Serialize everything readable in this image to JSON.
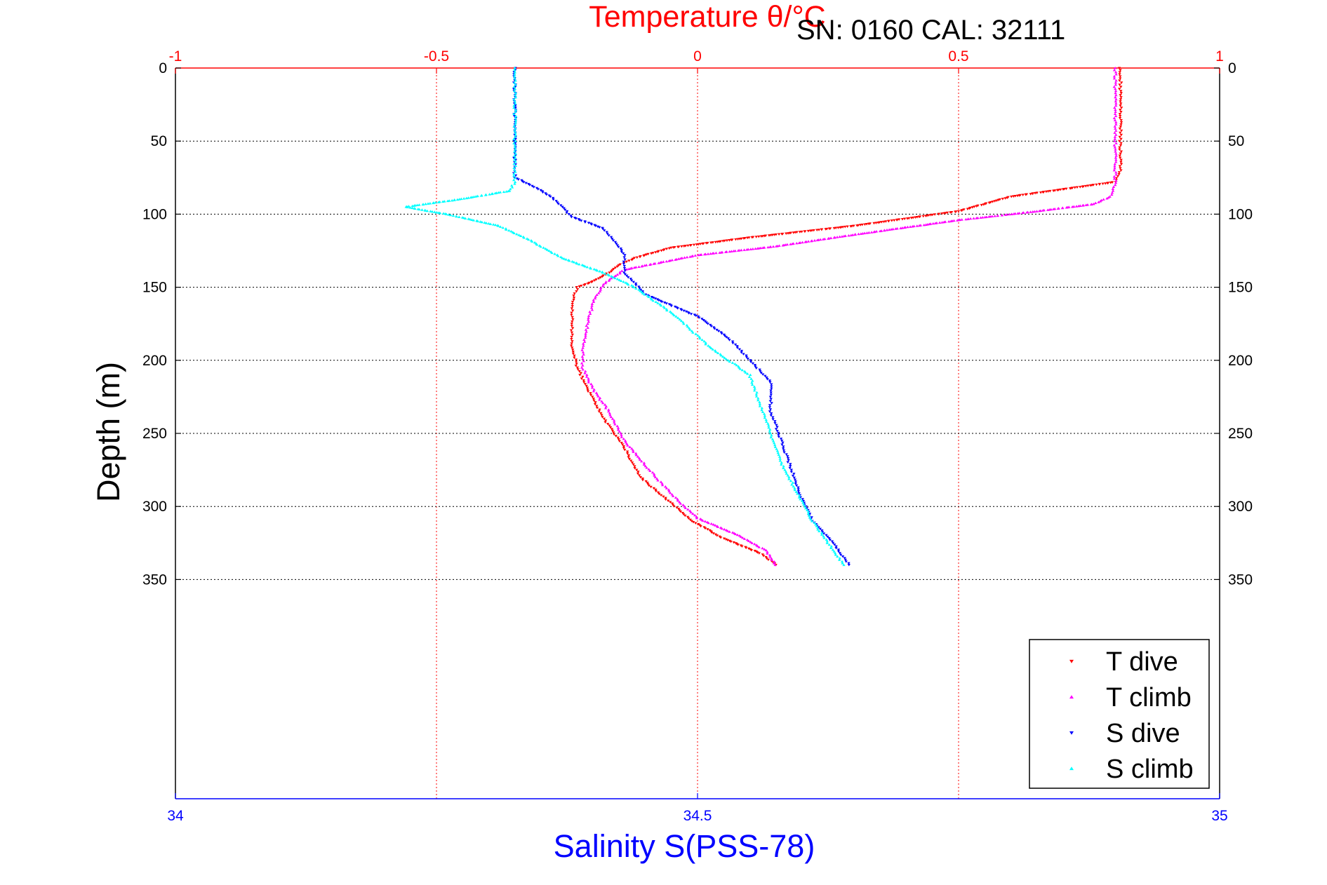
{
  "chart_data": {
    "type": "scatter",
    "sn_label": "SN: 0160  CAL: 32111",
    "top_axis": {
      "label": "Temperature θ/°C",
      "range": [
        -1,
        1
      ],
      "ticks": [
        -1,
        -0.5,
        0,
        0.5,
        1
      ],
      "tick_labels": [
        "-1",
        "-0.5",
        "0",
        "0.5",
        "1"
      ],
      "color": "#ff0000"
    },
    "bottom_axis": {
      "label": "Salinity S(PSS-78)",
      "range": [
        34,
        35
      ],
      "ticks": [
        34,
        34.5,
        35
      ],
      "tick_labels": [
        "34",
        "34.5",
        "35"
      ],
      "color": "#0000ff"
    },
    "y_axis": {
      "label": "Depth (m)",
      "range": [
        0,
        500
      ],
      "inverted": true,
      "ticks": [
        0,
        50,
        100,
        150,
        200,
        250,
        300,
        350
      ],
      "tick_labels": [
        "0",
        "50",
        "100",
        "150",
        "200",
        "250",
        "300",
        "350"
      ]
    },
    "grid": true,
    "legend_position": "bottom-right",
    "series": [
      {
        "name": "T dive",
        "axis": "temperature",
        "color": "#ff0000",
        "marker": "triangle-down",
        "points": [
          [
            0.81,
            0
          ],
          [
            0.81,
            20
          ],
          [
            0.81,
            40
          ],
          [
            0.81,
            60
          ],
          [
            0.81,
            70
          ],
          [
            0.8,
            78
          ],
          [
            0.72,
            82
          ],
          [
            0.6,
            88
          ],
          [
            0.5,
            98
          ],
          [
            0.3,
            108
          ],
          [
            0.1,
            116
          ],
          [
            -0.05,
            123
          ],
          [
            -0.12,
            130
          ],
          [
            -0.15,
            135
          ],
          [
            -0.17,
            140
          ],
          [
            -0.2,
            146
          ],
          [
            -0.23,
            150
          ],
          [
            -0.24,
            160
          ],
          [
            -0.24,
            175
          ],
          [
            -0.24,
            190
          ],
          [
            -0.23,
            205
          ],
          [
            -0.21,
            220
          ],
          [
            -0.18,
            240
          ],
          [
            -0.14,
            260
          ],
          [
            -0.11,
            280
          ],
          [
            -0.05,
            298
          ],
          [
            -0.01,
            310
          ],
          [
            0.05,
            322
          ],
          [
            0.12,
            332
          ],
          [
            0.15,
            340
          ]
        ]
      },
      {
        "name": "T climb",
        "axis": "temperature",
        "color": "#ff00ff",
        "marker": "triangle-up",
        "points": [
          [
            0.15,
            340
          ],
          [
            0.13,
            330
          ],
          [
            0.08,
            320
          ],
          [
            0,
            308
          ],
          [
            -0.04,
            295
          ],
          [
            -0.08,
            280
          ],
          [
            -0.14,
            255
          ],
          [
            -0.17,
            235
          ],
          [
            -0.2,
            220
          ],
          [
            -0.22,
            205
          ],
          [
            -0.22,
            190
          ],
          [
            -0.21,
            175
          ],
          [
            -0.2,
            160
          ],
          [
            -0.18,
            148
          ],
          [
            -0.14,
            138
          ],
          [
            0,
            128
          ],
          [
            0.15,
            122
          ],
          [
            0.3,
            114
          ],
          [
            0.5,
            104
          ],
          [
            0.65,
            98
          ],
          [
            0.76,
            93
          ],
          [
            0.79,
            88
          ],
          [
            0.8,
            80
          ],
          [
            0.8,
            60
          ],
          [
            0.8,
            40
          ],
          [
            0.8,
            20
          ],
          [
            0.8,
            0
          ]
        ]
      },
      {
        "name": "S dive",
        "axis": "salinity",
        "color": "#0000ff",
        "marker": "triangle-down",
        "points": [
          [
            34.325,
            0
          ],
          [
            34.325,
            20
          ],
          [
            34.325,
            40
          ],
          [
            34.325,
            60
          ],
          [
            34.325,
            75
          ],
          [
            34.34,
            80
          ],
          [
            34.36,
            88
          ],
          [
            34.37,
            95
          ],
          [
            34.38,
            102
          ],
          [
            34.41,
            110
          ],
          [
            34.42,
            118
          ],
          [
            34.43,
            128
          ],
          [
            34.43,
            140
          ],
          [
            34.45,
            155
          ],
          [
            34.5,
            170
          ],
          [
            34.53,
            185
          ],
          [
            34.55,
            200
          ],
          [
            34.57,
            215
          ],
          [
            34.57,
            235
          ],
          [
            34.58,
            255
          ],
          [
            34.59,
            275
          ],
          [
            34.6,
            295
          ],
          [
            34.61,
            310
          ],
          [
            34.63,
            325
          ],
          [
            34.645,
            340
          ]
        ]
      },
      {
        "name": "S climb",
        "axis": "salinity",
        "color": "#00ffff",
        "marker": "triangle-up",
        "points": [
          [
            34.64,
            340
          ],
          [
            34.625,
            325
          ],
          [
            34.61,
            310
          ],
          [
            34.595,
            290
          ],
          [
            34.58,
            270
          ],
          [
            34.57,
            250
          ],
          [
            34.56,
            230
          ],
          [
            34.55,
            210
          ],
          [
            34.51,
            190
          ],
          [
            34.48,
            170
          ],
          [
            34.44,
            150
          ],
          [
            34.41,
            140
          ],
          [
            34.37,
            130
          ],
          [
            34.34,
            118
          ],
          [
            34.31,
            108
          ],
          [
            34.26,
            100
          ],
          [
            34.22,
            95
          ],
          [
            34.27,
            90
          ],
          [
            34.32,
            84
          ],
          [
            34.325,
            78
          ],
          [
            34.325,
            60
          ],
          [
            34.325,
            40
          ],
          [
            34.325,
            20
          ],
          [
            34.325,
            0
          ]
        ]
      }
    ]
  }
}
